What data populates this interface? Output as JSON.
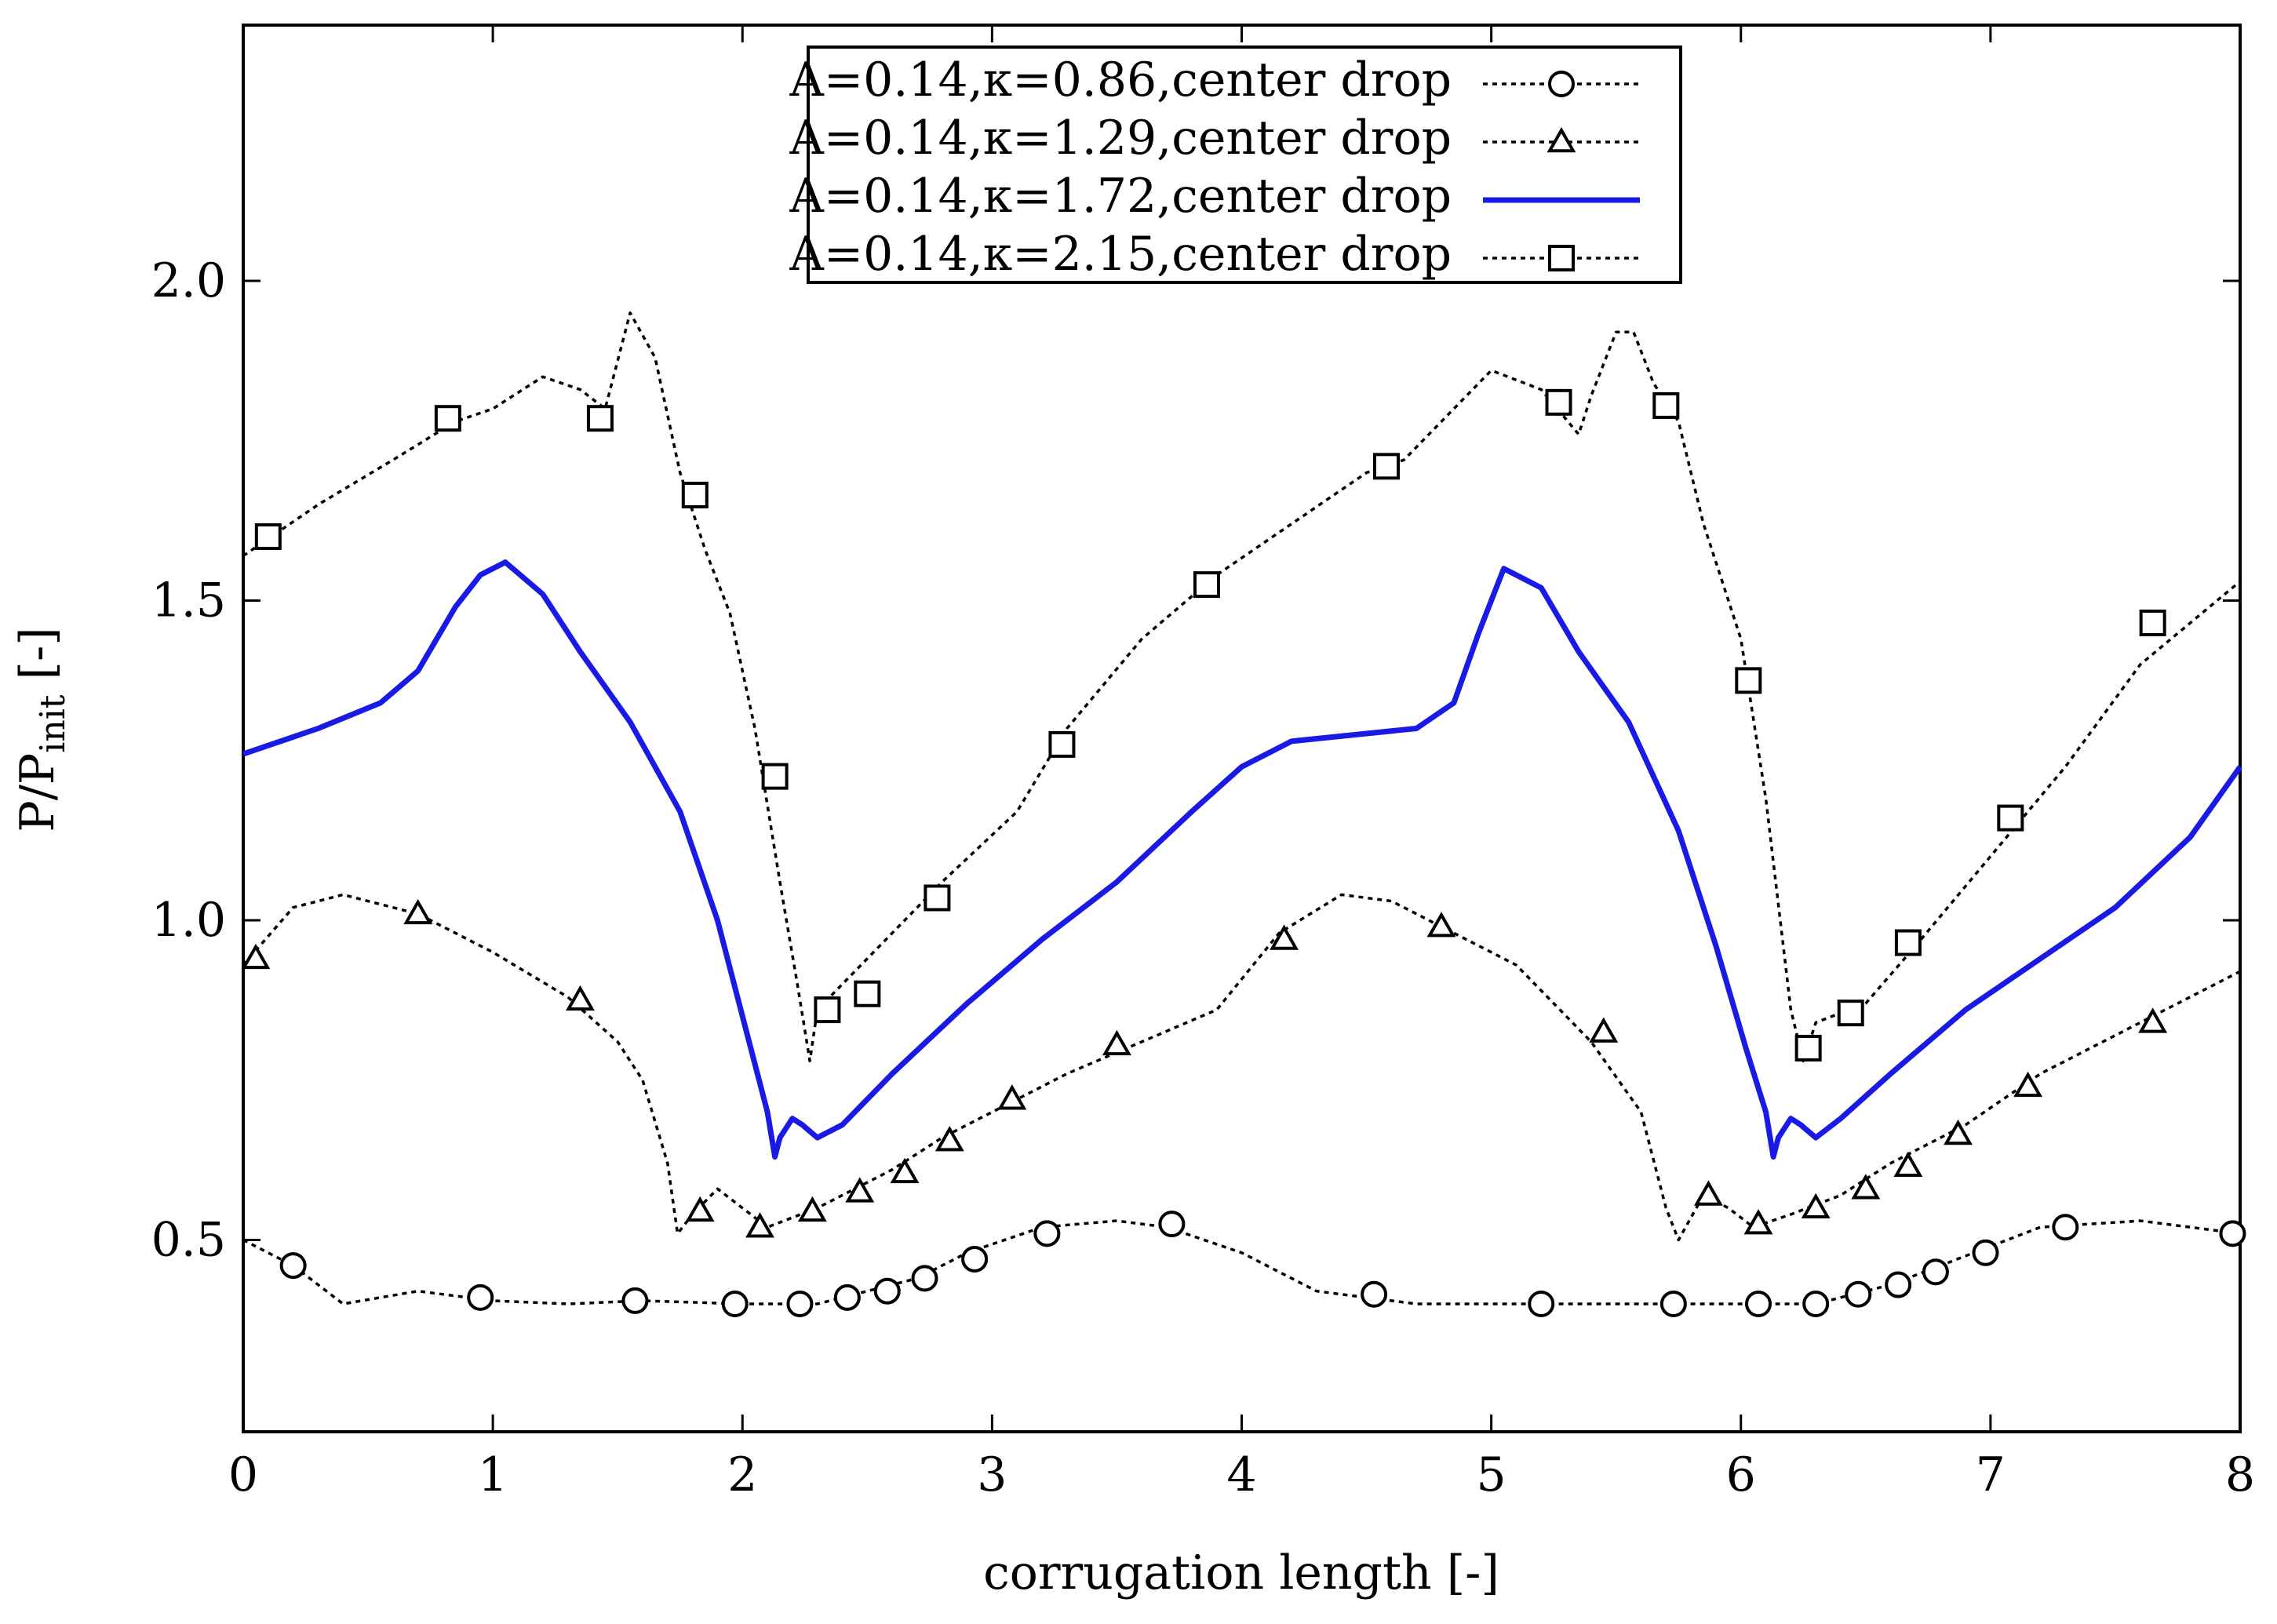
{
  "chart_data": {
    "type": "line",
    "title": "",
    "xlabel": "corrugation length [-]",
    "ylabel": "P/P",
    "ylabel_subscript": "init",
    "ylabel_unit": " [-]",
    "xlim": [
      0,
      8
    ],
    "ylim": [
      0.2,
      2.4
    ],
    "xticks": [
      0,
      1,
      2,
      3,
      4,
      5,
      6,
      7,
      8
    ],
    "xtick_labels": [
      "0",
      "1",
      "2",
      "3",
      "4",
      "5",
      "6",
      "7",
      "8"
    ],
    "yticks": [
      0.5,
      1.0,
      1.5,
      2.0
    ],
    "ytick_labels": [
      "0.5",
      "1.0",
      "1.5",
      "2.0"
    ],
    "legend_position": "top-center",
    "series": [
      {
        "name": "A=0.14,κ=0.86,center drop",
        "color": "#000000",
        "dash": "dotted",
        "marker": "circle",
        "x": [
          0,
          0.2,
          0.4,
          0.7,
          1.0,
          1.3,
          1.6,
          2.0,
          2.3,
          2.5,
          2.7,
          2.9,
          3.2,
          3.5,
          3.7,
          4.0,
          4.3,
          4.5,
          4.7,
          5.0,
          5.3,
          5.7,
          6.0,
          6.3,
          6.6,
          6.8,
          7.0,
          7.2,
          7.6,
          8.0
        ],
        "y": [
          0.5,
          0.46,
          0.4,
          0.42,
          0.405,
          0.4,
          0.405,
          0.4,
          0.4,
          0.42,
          0.44,
          0.48,
          0.52,
          0.53,
          0.52,
          0.48,
          0.42,
          0.41,
          0.4,
          0.4,
          0.4,
          0.4,
          0.4,
          0.4,
          0.43,
          0.46,
          0.49,
          0.52,
          0.53,
          0.51
        ],
        "marker_x": [
          0.2,
          0.95,
          1.57,
          1.97,
          2.23,
          2.42,
          2.58,
          2.73,
          2.93,
          3.22,
          3.72,
          4.53,
          5.2,
          5.73,
          6.07,
          6.3,
          6.47,
          6.63,
          6.78,
          6.98,
          7.3,
          7.97
        ],
        "marker_y": [
          0.46,
          0.41,
          0.405,
          0.4,
          0.4,
          0.41,
          0.42,
          0.44,
          0.47,
          0.51,
          0.525,
          0.415,
          0.4,
          0.4,
          0.4,
          0.4,
          0.415,
          0.43,
          0.45,
          0.48,
          0.52,
          0.51
        ]
      },
      {
        "name": "A=0.14,κ=1.29,center drop",
        "color": "#000000",
        "dash": "dotted",
        "marker": "triangle",
        "x": [
          0,
          0.2,
          0.4,
          0.7,
          1.0,
          1.3,
          1.5,
          1.6,
          1.7,
          1.74,
          1.8,
          1.9,
          2.0,
          2.1,
          2.3,
          2.6,
          2.8,
          3.0,
          3.3,
          3.6,
          3.9,
          4.15,
          4.4,
          4.6,
          4.8,
          5.1,
          5.4,
          5.6,
          5.7,
          5.75,
          5.85,
          5.95,
          6.05,
          6.2,
          6.4,
          6.6,
          6.9,
          7.2,
          7.6,
          8.0
        ],
        "y": [
          0.93,
          1.02,
          1.04,
          1.01,
          0.95,
          0.88,
          0.81,
          0.75,
          0.62,
          0.51,
          0.54,
          0.58,
          0.55,
          0.52,
          0.55,
          0.61,
          0.66,
          0.7,
          0.76,
          0.81,
          0.86,
          0.98,
          1.04,
          1.03,
          0.99,
          0.93,
          0.81,
          0.7,
          0.55,
          0.5,
          0.57,
          0.55,
          0.52,
          0.54,
          0.57,
          0.62,
          0.68,
          0.76,
          0.84,
          0.92
        ],
        "marker_x": [
          0.05,
          0.7,
          1.35,
          1.83,
          2.07,
          2.28,
          2.47,
          2.65,
          2.83,
          3.08,
          3.5,
          4.17,
          4.8,
          5.45,
          5.87,
          6.07,
          6.3,
          6.5,
          6.67,
          6.87,
          7.15,
          7.65
        ],
        "marker_y": [
          0.94,
          1.01,
          0.875,
          0.545,
          0.52,
          0.545,
          0.575,
          0.605,
          0.655,
          0.72,
          0.805,
          0.97,
          0.99,
          0.825,
          0.57,
          0.525,
          0.55,
          0.58,
          0.615,
          0.665,
          0.74,
          0.84
        ]
      },
      {
        "name": "A=0.14,κ=1.72,center drop",
        "color": "#1a1ae6",
        "dash": "solid",
        "marker": "none",
        "x": [
          0,
          0.3,
          0.55,
          0.7,
          0.85,
          0.95,
          1.05,
          1.2,
          1.35,
          1.55,
          1.75,
          1.9,
          2.02,
          2.1,
          2.13,
          2.15,
          2.2,
          2.24,
          2.3,
          2.4,
          2.6,
          2.9,
          3.2,
          3.5,
          3.8,
          4.0,
          4.2,
          4.45,
          4.7,
          4.85,
          4.95,
          5.05,
          5.2,
          5.35,
          5.55,
          5.75,
          5.9,
          6.02,
          6.1,
          6.13,
          6.15,
          6.2,
          6.24,
          6.3,
          6.4,
          6.6,
          6.9,
          7.2,
          7.5,
          7.8,
          8.0
        ],
        "y": [
          1.26,
          1.3,
          1.34,
          1.39,
          1.49,
          1.54,
          1.56,
          1.51,
          1.42,
          1.31,
          1.17,
          1.0,
          0.82,
          0.7,
          0.63,
          0.66,
          0.69,
          0.68,
          0.66,
          0.68,
          0.76,
          0.87,
          0.97,
          1.06,
          1.17,
          1.24,
          1.28,
          1.29,
          1.3,
          1.34,
          1.45,
          1.55,
          1.52,
          1.42,
          1.31,
          1.14,
          0.96,
          0.8,
          0.7,
          0.63,
          0.66,
          0.69,
          0.68,
          0.66,
          0.69,
          0.76,
          0.86,
          0.94,
          1.02,
          1.13,
          1.24
        ]
      },
      {
        "name": "A=0.14,κ=2.15,center drop",
        "color": "#000000",
        "dash": "dotted",
        "marker": "square",
        "x": [
          0,
          0.3,
          0.6,
          0.85,
          1.0,
          1.2,
          1.35,
          1.45,
          1.55,
          1.65,
          1.75,
          1.85,
          1.95,
          2.05,
          2.15,
          2.22,
          2.27,
          2.3,
          2.4,
          2.6,
          2.8,
          3.1,
          3.3,
          3.6,
          3.9,
          4.2,
          4.5,
          4.65,
          4.8,
          5.0,
          5.2,
          5.35,
          5.4,
          5.5,
          5.57,
          5.65,
          5.75,
          5.85,
          6.0,
          6.1,
          6.2,
          6.25,
          6.3,
          6.5,
          6.7,
          7.0,
          7.3,
          7.6,
          8.0
        ],
        "y": [
          1.57,
          1.65,
          1.72,
          1.78,
          1.8,
          1.85,
          1.83,
          1.8,
          1.95,
          1.88,
          1.7,
          1.58,
          1.48,
          1.3,
          1.06,
          0.9,
          0.78,
          0.86,
          0.9,
          0.98,
          1.06,
          1.17,
          1.3,
          1.44,
          1.54,
          1.62,
          1.7,
          1.72,
          1.78,
          1.86,
          1.83,
          1.76,
          1.82,
          1.92,
          1.92,
          1.84,
          1.78,
          1.62,
          1.44,
          1.19,
          0.86,
          0.78,
          0.84,
          0.87,
          0.96,
          1.1,
          1.24,
          1.4,
          1.53
        ],
        "marker_x": [
          0.1,
          0.82,
          1.43,
          1.81,
          2.13,
          2.34,
          2.5,
          2.78,
          3.28,
          3.86,
          4.58,
          5.27,
          5.7,
          6.03,
          6.27,
          6.44,
          6.67,
          7.08,
          7.65
        ],
        "marker_y": [
          1.6,
          1.785,
          1.785,
          1.665,
          1.225,
          0.86,
          0.885,
          1.035,
          1.275,
          1.525,
          1.71,
          1.81,
          1.805,
          1.375,
          0.8,
          0.855,
          0.965,
          1.16,
          1.465
        ]
      }
    ]
  }
}
